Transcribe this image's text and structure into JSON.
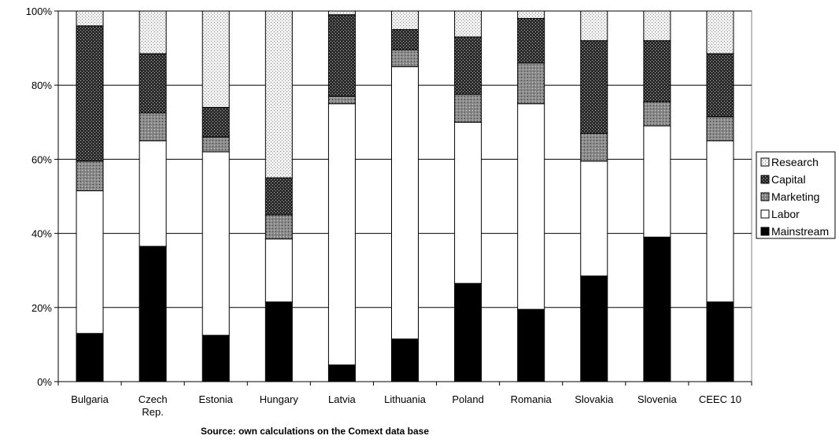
{
  "chart_data": {
    "type": "bar",
    "stacked": true,
    "percent": true,
    "categories": [
      [
        "Bulgaria"
      ],
      [
        "Czech",
        "Rep."
      ],
      [
        "Estonia"
      ],
      [
        "Hungary"
      ],
      [
        "Latvia"
      ],
      [
        "Lithuania"
      ],
      [
        "Poland"
      ],
      [
        "Romania"
      ],
      [
        "Slovakia"
      ],
      [
        "Slovenia"
      ],
      [
        "CEEC 10"
      ]
    ],
    "series": [
      {
        "name": "Mainstream",
        "fill": "solid-black",
        "values": [
          13,
          36.5,
          12.5,
          21.5,
          4.5,
          11.5,
          26.5,
          19.5,
          28.5,
          39,
          21.5
        ]
      },
      {
        "name": "Labor",
        "fill": "white",
        "values": [
          38.5,
          28.5,
          49.5,
          17,
          70.5,
          73.5,
          43.5,
          55.5,
          31,
          30,
          43.5
        ]
      },
      {
        "name": "Marketing",
        "fill": "gray-hatched",
        "values": [
          8,
          7.5,
          4,
          6.5,
          2,
          4.5,
          7.5,
          11,
          7.5,
          6.5,
          6.5
        ]
      },
      {
        "name": "Capital",
        "fill": "dark-hatched",
        "values": [
          36.5,
          16,
          8,
          10,
          22,
          5.5,
          15.5,
          12,
          25,
          16.5,
          17
        ]
      },
      {
        "name": "Research",
        "fill": "light-dotted",
        "values": [
          4,
          11.5,
          26,
          45,
          1,
          5,
          7,
          2,
          8,
          8,
          11.5
        ]
      }
    ],
    "ylim": [
      0,
      100
    ],
    "y_ticks": [
      "0%",
      "20%",
      "40%",
      "60%",
      "80%",
      "100%"
    ],
    "y_tick_values": [
      0,
      20,
      40,
      60,
      80,
      100
    ],
    "grid": true,
    "legend_position": "right",
    "legend_order": [
      "Research",
      "Capital",
      "Marketing",
      "Labor",
      "Mainstream"
    ]
  },
  "caption": "Source: own calculations on the Comext data base"
}
